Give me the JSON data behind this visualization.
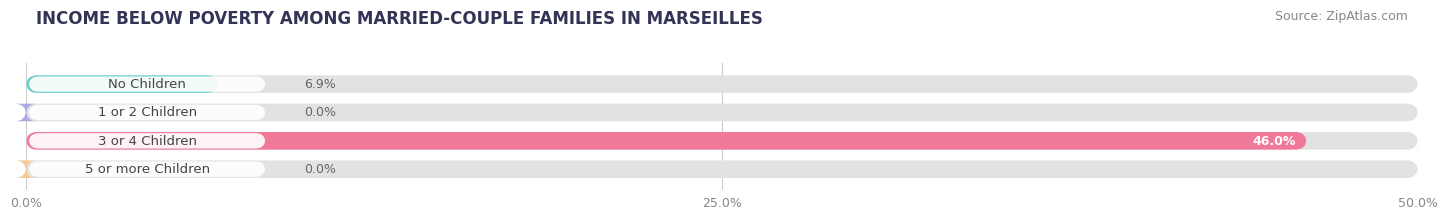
{
  "title": "INCOME BELOW POVERTY AMONG MARRIED-COUPLE FAMILIES IN MARSEILLES",
  "source": "Source: ZipAtlas.com",
  "categories": [
    "No Children",
    "1 or 2 Children",
    "3 or 4 Children",
    "5 or more Children"
  ],
  "values": [
    6.9,
    0.0,
    46.0,
    0.0
  ],
  "bar_colors": [
    "#69ceca",
    "#aaaade",
    "#f07898",
    "#f5c898"
  ],
  "xlim": [
    0,
    50
  ],
  "xticks": [
    0,
    25,
    50
  ],
  "xtick_labels": [
    "0.0%",
    "25.0%",
    "50.0%"
  ],
  "bar_height": 0.62,
  "background_color": "#f0f0f0",
  "bar_bg_color": "#e2e2e2",
  "title_fontsize": 12,
  "source_fontsize": 9,
  "label_fontsize": 9.5,
  "value_fontsize": 9,
  "tick_fontsize": 9,
  "value_label_inside_threshold": 40
}
